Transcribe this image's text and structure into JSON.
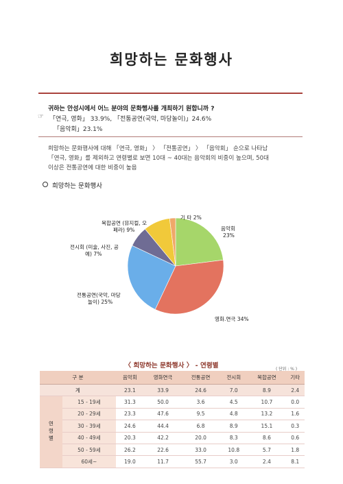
{
  "title": "희망하는 문화행사",
  "question": "귀하는 안성시에서 어느 분야의 문화행사를 개최하기 원합니까 ?",
  "answer_mark": "☞",
  "answer_line1": "「연극, 영화」 33.9%, 「전통공연(국악, 마당놀이)」24.6%",
  "answer_line2": "「음악회」23.1%",
  "description": [
    "희망하는 문화행사에 대해 「연극, 영화」 〉 「전통공연」 〉 「음악회」 순으로 나타남",
    "「연극, 영화」를 제외하고 연령별로 보면 10대 ~ 40대는 음악회의 비중이 높으며, 50대",
    "이상은 전통공연에 대한 비중이 높음"
  ],
  "section_title": "희망하는 문화행사",
  "chart_data": {
    "type": "pie",
    "slices": [
      {
        "label": "음악회 23%",
        "value": 23,
        "color": "#a6d66a"
      },
      {
        "label": "영화.연극 34%",
        "value": 34,
        "color": "#e3735f"
      },
      {
        "label": "전통공연(국악, 마당놀이) 25%",
        "value": 25,
        "color": "#6aaee9"
      },
      {
        "label": "전시회 (미술, 사진, 공예) 7%",
        "value": 7,
        "color": "#6f6c94"
      },
      {
        "label": "복합공연 (뮤지컬, 오페라) 9%",
        "value": 9,
        "color": "#f1c93a"
      },
      {
        "label": "기 타 2%",
        "value": 2,
        "color": "#f0a86a"
      }
    ]
  },
  "pie_labels": {
    "music_1": "음악회",
    "music_2": "23%",
    "movie": "영화.연극 34%",
    "trad_1": "전통공연(국악, 마당",
    "trad_2": "놀이) 25%",
    "exhib_1": "전시회 (미술, 사진, 공",
    "exhib_2": "예) 7%",
    "combo_1": "복합공연 (뮤지컬, 오",
    "combo_2": "페라) 9%",
    "etc": "기 타 2%"
  },
  "table_title": "〈 희망하는 문화행사 〉 - 연령별",
  "unit": "( 단위 : % )",
  "table": {
    "corner": "구 분",
    "group_label": "연령별",
    "columns": [
      "음악회",
      "영화연극",
      "전통공연",
      "전시회",
      "복합공연",
      "기타"
    ],
    "total": {
      "label": "계",
      "values": [
        "23.1",
        "33.9",
        "24.6",
        "7.0",
        "8.9",
        "2.4"
      ]
    },
    "rows": [
      {
        "label": "15 - 19세",
        "values": [
          "31.3",
          "50.0",
          "3.6",
          "4.5",
          "10.7",
          "0.0"
        ]
      },
      {
        "label": "20 - 29세",
        "values": [
          "23.3",
          "47.6",
          "9.5",
          "4.8",
          "13.2",
          "1.6"
        ]
      },
      {
        "label": "30 - 39세",
        "values": [
          "24.6",
          "44.4",
          "6.8",
          "8.9",
          "15.1",
          "0.3"
        ]
      },
      {
        "label": "40 - 49세",
        "values": [
          "20.3",
          "42.2",
          "20.0",
          "8.3",
          "8.6",
          "0.6"
        ]
      },
      {
        "label": "50 - 59세",
        "values": [
          "26.2",
          "22.6",
          "33.0",
          "10.8",
          "5.7",
          "1.8"
        ]
      },
      {
        "label": "60세~",
        "values": [
          "19.0",
          "11.7",
          "55.7",
          "3.0",
          "2.4",
          "8.1"
        ]
      }
    ]
  }
}
